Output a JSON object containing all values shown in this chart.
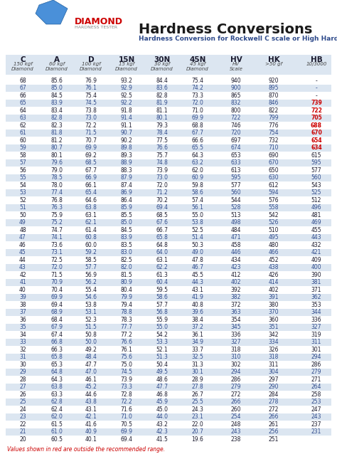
{
  "title": "Hardness Conversions",
  "subtitle": "Hardness Conversion for Rockwell C scale or High Hardness Range",
  "columns": [
    "C",
    "A",
    "D",
    "15N",
    "30N",
    "45N",
    "HV",
    "HK",
    "HB"
  ],
  "col_sub1": [
    "150 kgf",
    "60 kgf",
    "100 kgf",
    "15 kgf",
    "30 kgf",
    "45 kgf",
    "HV",
    ">50 gf",
    "10/3000"
  ],
  "col_sub2": [
    "Diamond",
    "Diamond",
    "Diamond",
    "Diamond",
    "Diamond",
    "Diamond",
    "Scale",
    "",
    ""
  ],
  "rows": [
    [
      68,
      85.6,
      76.9,
      93.2,
      84.4,
      75.4,
      940,
      920,
      "-"
    ],
    [
      67,
      85.0,
      76.1,
      92.9,
      83.6,
      74.2,
      900,
      895,
      "-"
    ],
    [
      66,
      84.5,
      75.4,
      92.5,
      82.8,
      73.3,
      865,
      870,
      "-"
    ],
    [
      65,
      83.9,
      74.5,
      92.2,
      81.9,
      72.0,
      832,
      846,
      739
    ],
    [
      64,
      83.4,
      73.8,
      91.8,
      81.1,
      71.0,
      800,
      822,
      722
    ],
    [
      63,
      82.8,
      73.0,
      91.4,
      80.1,
      69.9,
      722,
      799,
      705
    ],
    [
      62,
      82.3,
      72.2,
      91.1,
      79.3,
      68.8,
      746,
      776,
      688
    ],
    [
      61,
      81.8,
      71.5,
      90.7,
      78.4,
      67.7,
      720,
      754,
      670
    ],
    [
      60,
      81.2,
      70.7,
      90.2,
      77.5,
      66.6,
      697,
      732,
      654
    ],
    [
      59,
      80.7,
      69.9,
      89.8,
      76.6,
      65.5,
      674,
      710,
      634
    ],
    [
      58,
      80.1,
      69.2,
      89.3,
      75.7,
      64.3,
      653,
      690,
      615
    ],
    [
      57,
      79.6,
      68.5,
      88.9,
      74.8,
      63.2,
      633,
      670,
      595
    ],
    [
      56,
      79.0,
      67.7,
      88.3,
      73.9,
      62.0,
      613,
      650,
      577
    ],
    [
      55,
      78.5,
      66.9,
      87.9,
      73.0,
      60.9,
      595,
      630,
      560
    ],
    [
      54,
      78.0,
      66.1,
      87.4,
      72.0,
      59.8,
      577,
      612,
      543
    ],
    [
      53,
      77.4,
      65.4,
      86.9,
      71.2,
      58.6,
      560,
      594,
      525
    ],
    [
      52,
      76.8,
      64.6,
      86.4,
      70.2,
      57.4,
      544,
      576,
      512
    ],
    [
      51,
      76.3,
      63.8,
      85.9,
      69.4,
      56.1,
      528,
      558,
      496
    ],
    [
      50,
      75.9,
      63.1,
      85.5,
      68.5,
      55.0,
      513,
      542,
      481
    ],
    [
      49,
      75.2,
      62.1,
      85.0,
      67.6,
      53.8,
      498,
      526,
      469
    ],
    [
      48,
      74.7,
      61.4,
      84.5,
      66.7,
      52.5,
      484,
      510,
      455
    ],
    [
      47,
      74.1,
      60.8,
      83.9,
      65.8,
      51.4,
      471,
      495,
      443
    ],
    [
      46,
      73.6,
      60.0,
      83.5,
      64.8,
      50.3,
      458,
      480,
      432
    ],
    [
      45,
      73.1,
      59.2,
      83.0,
      64.0,
      49.0,
      446,
      466,
      421
    ],
    [
      44,
      72.5,
      58.5,
      82.5,
      63.1,
      47.8,
      434,
      452,
      409
    ],
    [
      43,
      72.0,
      57.7,
      82.0,
      62.2,
      46.7,
      423,
      438,
      400
    ],
    [
      42,
      71.5,
      56.9,
      81.5,
      61.3,
      45.5,
      412,
      426,
      390
    ],
    [
      41,
      70.9,
      56.2,
      80.9,
      60.4,
      44.3,
      402,
      414,
      381
    ],
    [
      40,
      70.4,
      55.4,
      80.4,
      59.5,
      43.1,
      392,
      402,
      371
    ],
    [
      39,
      69.9,
      54.6,
      79.9,
      58.6,
      41.9,
      382,
      391,
      362
    ],
    [
      38,
      69.4,
      53.8,
      79.4,
      57.7,
      40.8,
      372,
      380,
      353
    ],
    [
      37,
      68.9,
      53.1,
      78.8,
      56.8,
      39.6,
      363,
      370,
      344
    ],
    [
      36,
      68.4,
      52.3,
      78.3,
      55.9,
      38.4,
      354,
      360,
      336
    ],
    [
      35,
      67.9,
      51.5,
      77.7,
      55.0,
      37.2,
      345,
      351,
      327
    ],
    [
      34,
      67.4,
      50.8,
      77.2,
      54.2,
      36.1,
      336,
      342,
      319
    ],
    [
      33,
      66.8,
      50.0,
      76.6,
      53.3,
      34.9,
      327,
      334,
      311
    ],
    [
      32,
      66.3,
      49.2,
      76.1,
      52.1,
      33.7,
      318,
      326,
      301
    ],
    [
      31,
      65.8,
      48.4,
      75.6,
      51.3,
      32.5,
      310,
      318,
      294
    ],
    [
      30,
      65.3,
      47.7,
      75.0,
      50.4,
      31.3,
      302,
      311,
      286
    ],
    [
      29,
      64.8,
      47.0,
      74.5,
      49.5,
      30.1,
      294,
      304,
      279
    ],
    [
      28,
      64.3,
      46.1,
      73.9,
      48.6,
      28.9,
      286,
      297,
      271
    ],
    [
      27,
      63.8,
      45.2,
      73.3,
      47.7,
      27.8,
      279,
      290,
      264
    ],
    [
      26,
      63.3,
      44.6,
      72.8,
      46.8,
      26.7,
      272,
      284,
      258
    ],
    [
      25,
      62.8,
      43.8,
      72.2,
      45.9,
      25.5,
      266,
      278,
      253
    ],
    [
      24,
      62.4,
      43.1,
      71.6,
      45.0,
      24.3,
      260,
      272,
      247
    ],
    [
      23,
      62.0,
      42.1,
      71.0,
      44.0,
      23.1,
      254,
      266,
      243
    ],
    [
      22,
      61.5,
      41.6,
      70.5,
      43.2,
      22.0,
      248,
      261,
      237
    ],
    [
      21,
      61.0,
      40.9,
      69.9,
      42.3,
      20.7,
      243,
      256,
      231
    ],
    [
      20,
      60.5,
      40.1,
      69.4,
      41.5,
      19.6,
      238,
      251,
      ""
    ]
  ],
  "red_rows": [
    65,
    64,
    63,
    62,
    61,
    60,
    59
  ],
  "highlighted_rows": [
    67,
    65,
    63,
    61,
    59,
    57,
    55,
    53,
    51,
    49,
    47,
    45,
    43,
    41,
    39,
    37,
    35,
    33,
    31,
    29,
    27,
    25,
    23,
    21
  ],
  "footer_note": "Values shown in red are outside the recommended range.",
  "bg_color": "#ffffff",
  "header_bg": "#dce6f1",
  "alt_row_bg": "#dce6f1",
  "normal_row_bg": "#ffffff",
  "text_color_blue": "#2e4a8b",
  "text_color_red": "#cc0000",
  "text_color_dark": "#1a1a2e"
}
